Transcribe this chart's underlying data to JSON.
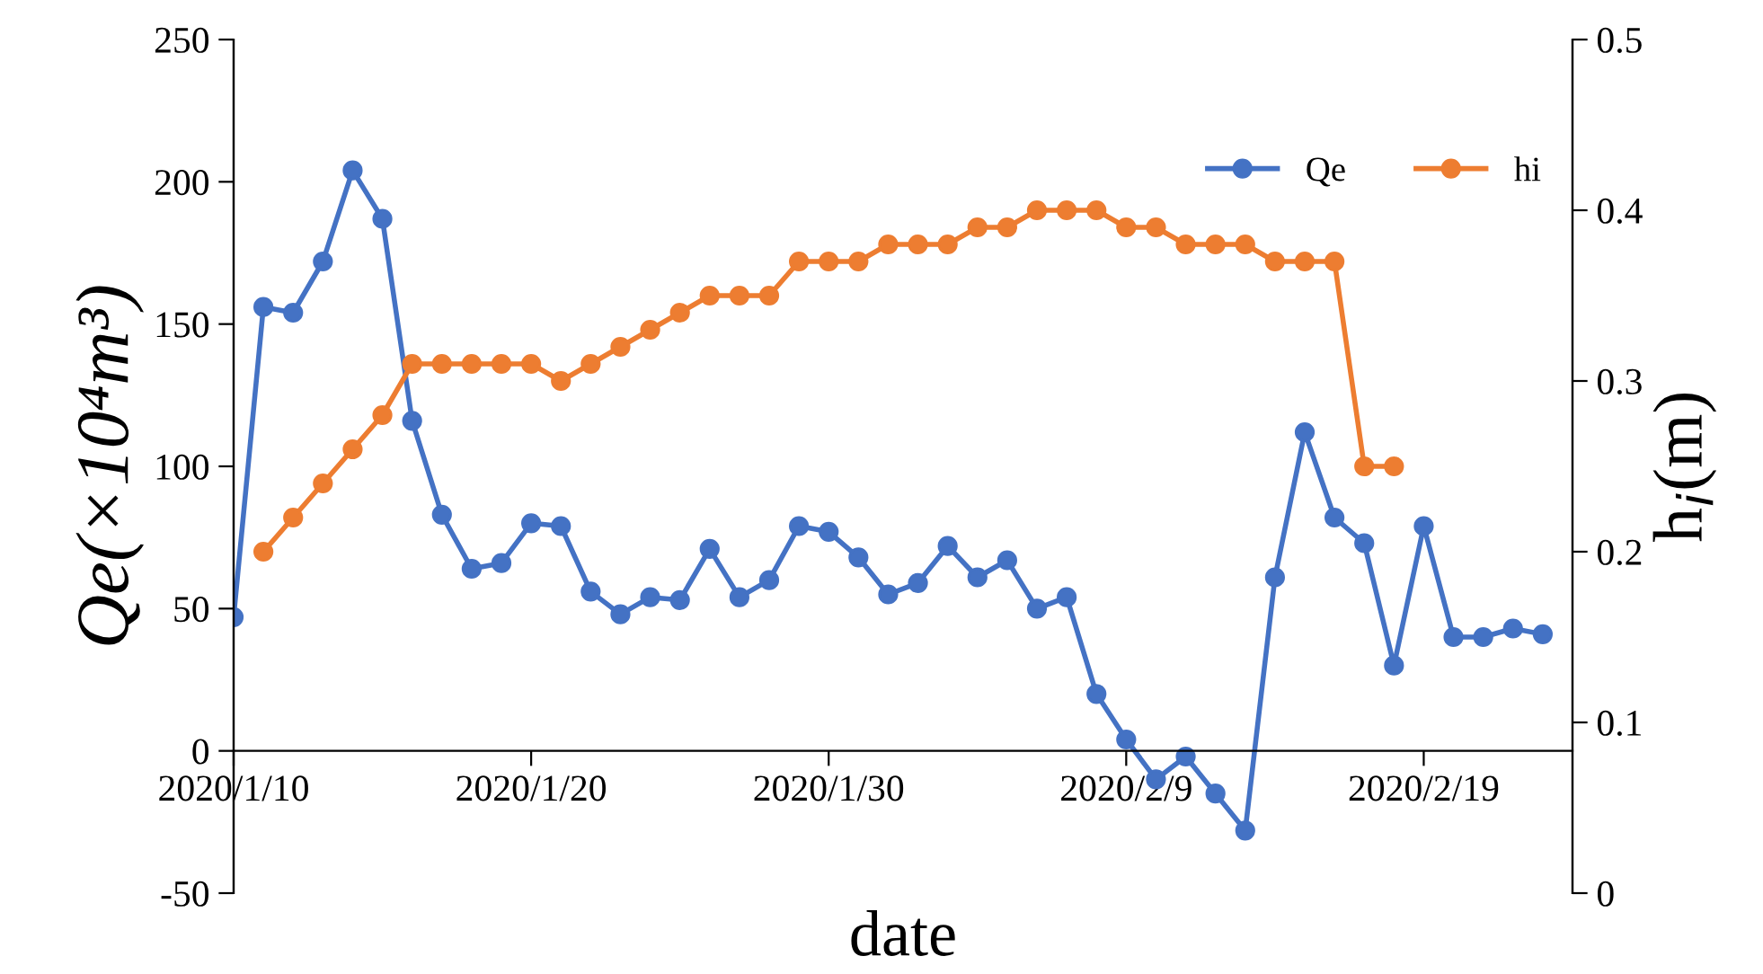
{
  "chart_data": {
    "type": "line",
    "xlabel": "date",
    "ylabel": "Qe(×10⁴m³)",
    "y2label": "h$_{i}$(m)",
    "x": [
      "2020-01-10",
      "2020-01-11",
      "2020-01-12",
      "2020-01-13",
      "2020-01-14",
      "2020-01-15",
      "2020-01-16",
      "2020-01-17",
      "2020-01-18",
      "2020-01-19",
      "2020-01-20",
      "2020-01-21",
      "2020-01-22",
      "2020-01-23",
      "2020-01-24",
      "2020-01-25",
      "2020-01-26",
      "2020-01-27",
      "2020-01-28",
      "2020-01-29",
      "2020-01-30",
      "2020-01-31",
      "2020-02-01",
      "2020-02-02",
      "2020-02-03",
      "2020-02-04",
      "2020-02-05",
      "2020-02-06",
      "2020-02-07",
      "2020-02-08",
      "2020-02-09",
      "2020-02-10",
      "2020-02-11",
      "2020-02-12",
      "2020-02-13",
      "2020-02-14",
      "2020-02-15",
      "2020-02-16",
      "2020-02-17",
      "2020-02-18",
      "2020-02-19",
      "2020-02-20",
      "2020-02-21",
      "2020-02-22",
      "2020-02-23"
    ],
    "series": [
      {
        "name": "Qe",
        "color": "#4472c4",
        "values": [
          47,
          156,
          154,
          172,
          204,
          187,
          116,
          83,
          64,
          66,
          80,
          79,
          56,
          48,
          54,
          53,
          71,
          54,
          60,
          79,
          77,
          68,
          55,
          59,
          72,
          61,
          67,
          50,
          54,
          20,
          4,
          -10,
          -2,
          -15,
          -28,
          61,
          112,
          82,
          73,
          30,
          79,
          40,
          40,
          43,
          41
        ]
      },
      {
        "name": "hi",
        "color": "#ed7d31",
        "axis": "y2",
        "x": [
          "2020-01-11",
          "2020-01-12",
          "2020-01-13",
          "2020-01-14",
          "2020-01-15",
          "2020-01-16",
          "2020-01-17",
          "2020-01-18",
          "2020-01-19",
          "2020-01-20",
          "2020-01-21",
          "2020-01-22",
          "2020-01-23",
          "2020-01-24",
          "2020-01-25",
          "2020-01-26",
          "2020-01-27",
          "2020-01-28",
          "2020-01-29",
          "2020-01-30",
          "2020-01-31",
          "2020-02-01",
          "2020-02-02",
          "2020-02-03",
          "2020-02-04",
          "2020-02-05",
          "2020-02-06",
          "2020-02-07",
          "2020-02-08",
          "2020-02-09",
          "2020-02-10",
          "2020-02-11",
          "2020-02-12",
          "2020-02-13",
          "2020-02-14",
          "2020-02-15",
          "2020-02-16",
          "2020-02-17",
          "2020-02-18"
        ],
        "values": [
          0.2,
          0.22,
          0.24,
          0.26,
          0.28,
          0.31,
          0.31,
          0.31,
          0.31,
          0.31,
          0.3,
          0.31,
          0.32,
          0.33,
          0.34,
          0.35,
          0.35,
          0.35,
          0.37,
          0.37,
          0.37,
          0.38,
          0.38,
          0.38,
          0.39,
          0.39,
          0.4,
          0.4,
          0.4,
          0.39,
          0.39,
          0.38,
          0.38,
          0.38,
          0.37,
          0.37,
          0.37,
          0.25,
          0.25
        ]
      }
    ],
    "xlim": [
      "2020-01-10",
      "2020-02-24"
    ],
    "xticks": [
      {
        "value": "2020-01-10",
        "label": "2020/1/10"
      },
      {
        "value": "2020-01-20",
        "label": "2020/1/20"
      },
      {
        "value": "2020-01-30",
        "label": "2020/1/30"
      },
      {
        "value": "2020-02-09",
        "label": "2020/2/9"
      },
      {
        "value": "2020-02-19",
        "label": "2020/2/19"
      }
    ],
    "ylim": [
      -50,
      250
    ],
    "yticks": [
      -50,
      0,
      50,
      100,
      150,
      200,
      250
    ],
    "y2lim": [
      0,
      0.5
    ],
    "y2ticks": [
      0,
      0.1,
      0.2,
      0.3,
      0.4,
      0.5
    ],
    "marker": "circle",
    "line_style": "solid",
    "grid": false,
    "legend": "top right"
  }
}
